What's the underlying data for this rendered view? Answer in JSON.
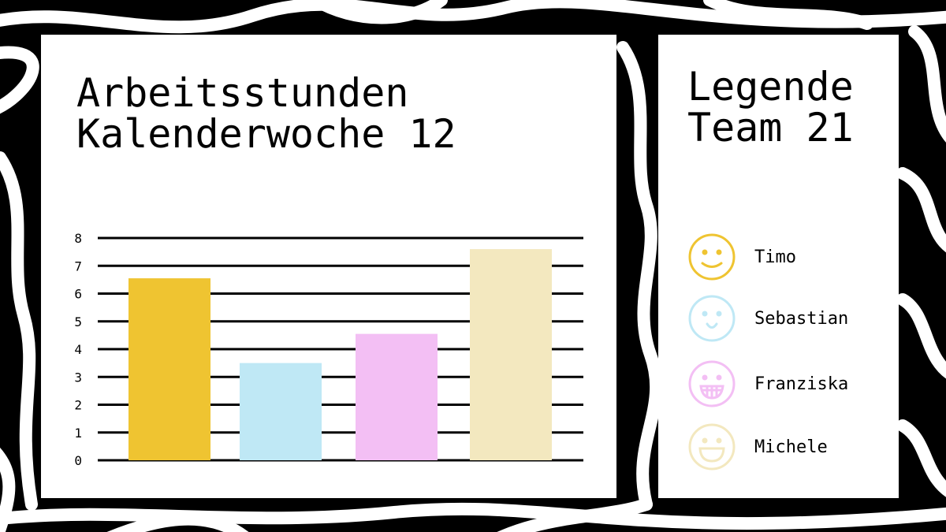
{
  "chart_data": {
    "type": "bar",
    "title": "Arbeitsstunden\nKalenderwoche 12",
    "categories": [
      "Timo",
      "Sebastian",
      "Franziska",
      "Michele"
    ],
    "values": [
      6.55,
      3.5,
      4.55,
      7.6
    ],
    "colors": [
      "#efc431",
      "#bfe8f5",
      "#f3bff4",
      "#f3e8bf"
    ],
    "ylim": [
      0,
      8
    ],
    "yticks": [
      "0",
      "1",
      "2",
      "3",
      "4",
      "5",
      "6",
      "7",
      "8"
    ],
    "grid": true,
    "xlabel": "",
    "ylabel": ""
  },
  "legend": {
    "title": "Legende\nTeam 21",
    "items": [
      {
        "label": "Timo",
        "icon": "smile-icon",
        "color": "#efc431"
      },
      {
        "label": "Sebastian",
        "icon": "slight-smile-icon",
        "color": "#bfe8f5"
      },
      {
        "label": "Franziska",
        "icon": "grin-teeth-icon",
        "color": "#f3bff4"
      },
      {
        "label": "Michele",
        "icon": "laugh-icon",
        "color": "#f3e8bf"
      }
    ]
  }
}
